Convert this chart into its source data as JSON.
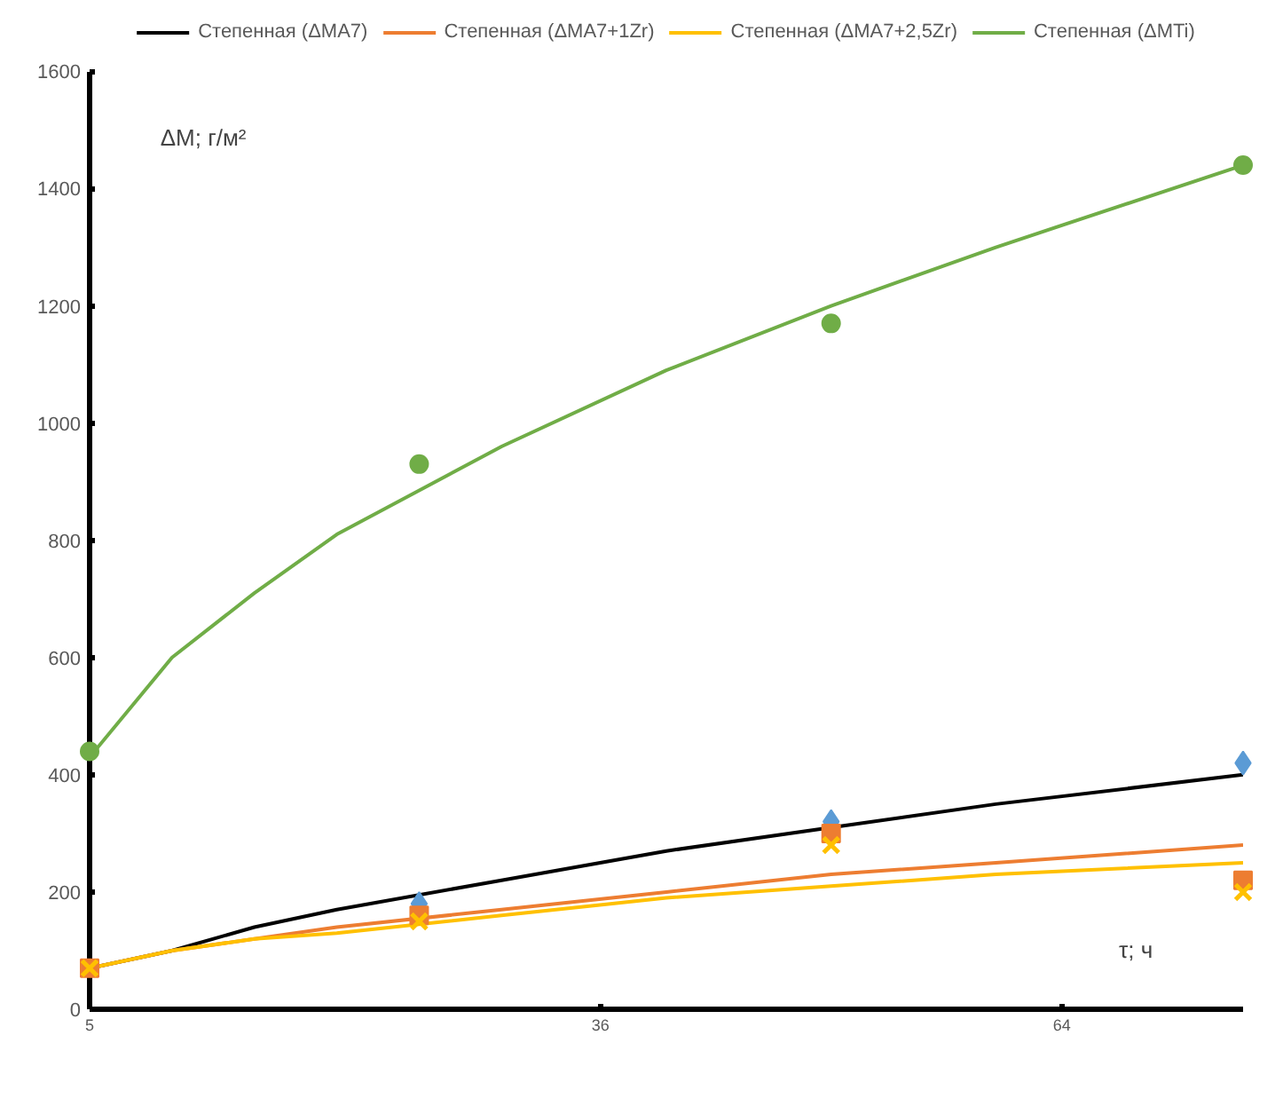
{
  "chart_data": {
    "type": "scatter",
    "xlabel": "τ; ч",
    "ylabel": "ΔM; г/м²",
    "xlim": [
      5,
      75
    ],
    "xticks": [
      5,
      36,
      64
    ],
    "ylim": [
      0,
      1600
    ],
    "yticks": [
      0,
      200,
      400,
      600,
      800,
      1000,
      1200,
      1400,
      1600
    ],
    "grid": false,
    "legend": "top",
    "series": [
      {
        "marker": "diamond",
        "color": "#5b9bd5",
        "x": [
          25,
          50,
          75
        ],
        "values": [
          180,
          320,
          420
        ]
      },
      {
        "marker": "square",
        "color": "#ed7d31",
        "x": [
          5,
          25,
          50,
          75
        ],
        "values": [
          70,
          160,
          300,
          220
        ]
      },
      {
        "marker": "cross",
        "color": "#ffc000",
        "x": [
          5,
          25,
          50,
          75
        ],
        "values": [
          70,
          150,
          280,
          200
        ]
      },
      {
        "marker": "circle",
        "color": "#70ad47",
        "x": [
          5,
          25,
          50,
          75
        ],
        "values": [
          440,
          930,
          1170,
          1440
        ]
      },
      {
        "type": "line",
        "name": "Степенная (ΔMA7)",
        "color": "#000000",
        "x": [
          5,
          10,
          15,
          20,
          30,
          40,
          50,
          60,
          75
        ],
        "values": [
          70,
          100,
          140,
          170,
          220,
          270,
          310,
          350,
          400
        ]
      },
      {
        "type": "line",
        "name": "Степенная (ΔMA7+1Zr)",
        "color": "#ed7d31",
        "x": [
          5,
          10,
          15,
          20,
          30,
          40,
          50,
          60,
          75
        ],
        "values": [
          70,
          100,
          120,
          140,
          170,
          200,
          230,
          250,
          280
        ]
      },
      {
        "type": "line",
        "name": "Степенная (ΔMA7+2,5Zr)",
        "color": "#ffc000",
        "x": [
          5,
          10,
          15,
          20,
          30,
          40,
          50,
          60,
          75
        ],
        "values": [
          70,
          100,
          120,
          130,
          160,
          190,
          210,
          230,
          250
        ]
      },
      {
        "type": "line",
        "name": "Степенная (ΔMTi)",
        "color": "#70ad47",
        "x": [
          5,
          10,
          15,
          20,
          30,
          40,
          50,
          60,
          75
        ],
        "values": [
          430,
          600,
          710,
          810,
          960,
          1090,
          1200,
          1300,
          1440
        ]
      }
    ]
  }
}
